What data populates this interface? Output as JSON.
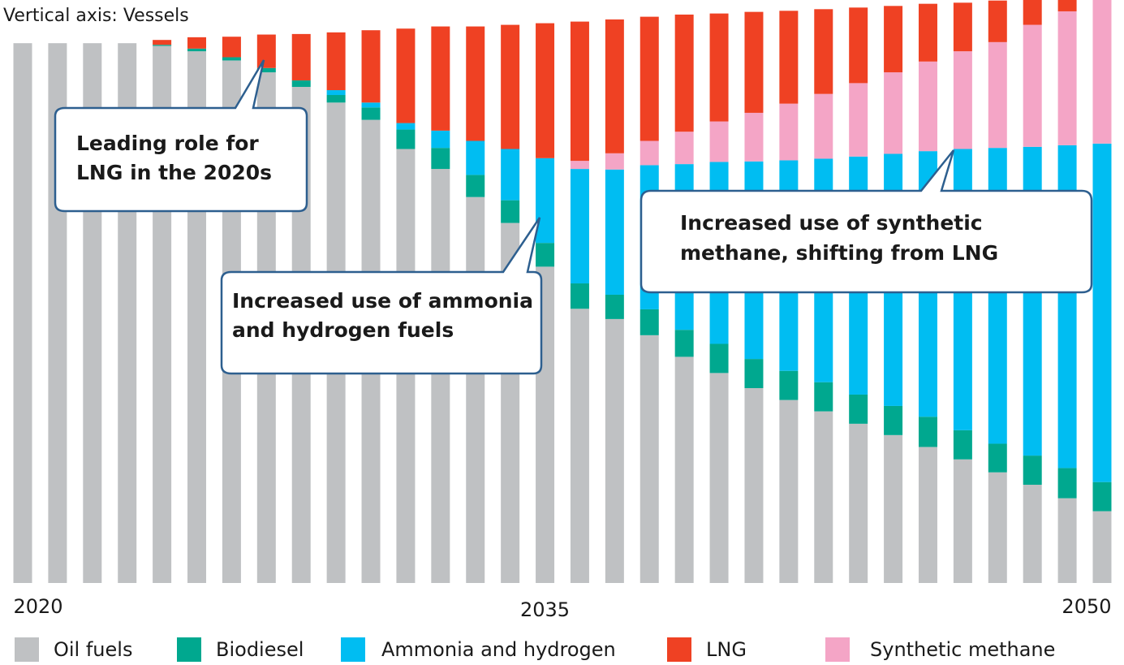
{
  "chart_data": {
    "type": "stacked_bar",
    "y_axis_label": "Vertical axis: Vessels",
    "categories": [
      "2020",
      null,
      null,
      null,
      null,
      null,
      null,
      null,
      null,
      null,
      null,
      null,
      null,
      null,
      null,
      "2035",
      null,
      null,
      null,
      null,
      null,
      null,
      null,
      null,
      null,
      null,
      null,
      null,
      null,
      null,
      null,
      "2050"
    ],
    "ylim": [
      0,
      108
    ],
    "series": [
      {
        "name": "Oil fuels",
        "color": "#bfc1c3",
        "values": [
          100,
          100,
          100,
          100,
          99.5,
          98.5,
          96.8,
          94.6,
          91.9,
          89.0,
          85.8,
          80.4,
          76.7,
          71.5,
          66.7,
          58.6,
          50.8,
          48.9,
          45.9,
          41.9,
          38.9,
          36.1,
          33.9,
          31.8,
          29.5,
          27.4,
          25.2,
          22.9,
          20.5,
          18.2,
          15.7,
          13.3
        ]
      },
      {
        "name": "Biodiesel",
        "color": "#00a88f",
        "values": [
          0,
          0,
          0,
          0,
          0.2,
          0.5,
          0.6,
          0.8,
          1.2,
          1.4,
          2.3,
          3.6,
          3.9,
          4.1,
          4.2,
          4.4,
          4.7,
          4.5,
          4.8,
          5.0,
          5.4,
          5.4,
          5.4,
          5.4,
          5.4,
          5.4,
          5.6,
          5.4,
          5.3,
          5.4,
          5.6,
          5.4
        ]
      },
      {
        "name": "Ammonia and hydrogen",
        "color": "#00bdf2",
        "values": [
          0,
          0,
          0,
          0,
          0,
          0,
          0,
          0,
          0,
          0.9,
          0.9,
          1.2,
          3.2,
          6.3,
          9.5,
          15.7,
          21.2,
          23.2,
          26.7,
          30.7,
          33.7,
          36.6,
          39.0,
          41.4,
          44.1,
          46.7,
          49.2,
          52.1,
          54.8,
          57.2,
          59.8,
          62.7
        ]
      },
      {
        "name": "LNG",
        "color": "#ef4123",
        "values": [
          0,
          0,
          0,
          0,
          0.9,
          2.1,
          3.8,
          6.2,
          8.6,
          10.7,
          13.4,
          17.5,
          19.3,
          21.2,
          23.0,
          25.0,
          25.8,
          24.8,
          23.0,
          21.7,
          20.0,
          18.7,
          17.2,
          15.7,
          14.0,
          12.3,
          10.7,
          9.0,
          7.7,
          4.7,
          2.3,
          0
        ]
      },
      {
        "name": "Synthetic methane",
        "color": "#f4a5c6",
        "values": [
          0,
          0,
          0,
          0,
          0,
          0,
          0,
          0,
          0,
          0,
          0,
          0,
          0,
          0,
          0,
          0,
          1.5,
          3.0,
          4.5,
          6.0,
          7.5,
          9.0,
          10.5,
          12.0,
          13.6,
          15.1,
          16.6,
          18.1,
          19.6,
          22.6,
          24.8,
          26.8
        ]
      }
    ],
    "annotations": [
      {
        "lines": [
          "Leading role for",
          "LNG in the 2020s"
        ]
      },
      {
        "lines": [
          "Increased use of ammonia",
          "and hydrogen fuels"
        ]
      },
      {
        "lines": [
          "Increased use of synthetic",
          "methane, shifting from LNG"
        ]
      }
    ]
  }
}
